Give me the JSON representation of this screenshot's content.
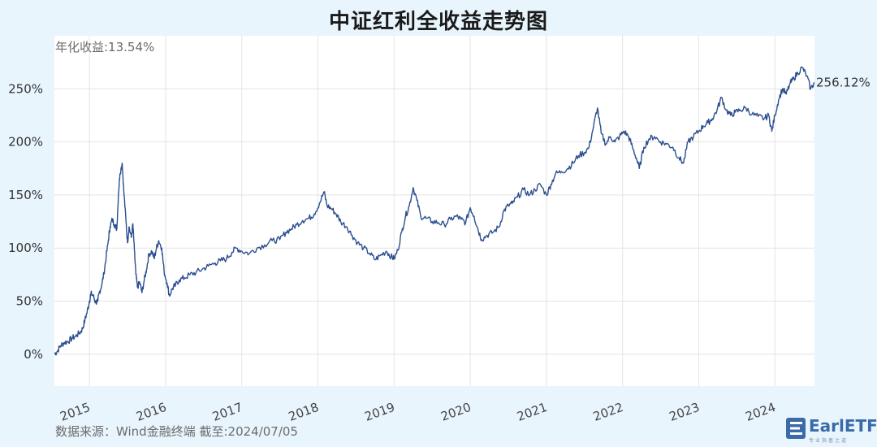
{
  "chart_data": {
    "type": "line",
    "title": "中证红利全收益走势图",
    "annualized_label": "年化收益:13.54%",
    "end_label": "256.12%",
    "source": "数据来源：Wind金融终端 截至:2024/07/05",
    "y_ticks": [
      "0%",
      "50%",
      "100%",
      "150%",
      "200%",
      "250%"
    ],
    "y_tick_values": [
      0,
      50,
      100,
      150,
      200,
      250
    ],
    "x_ticks": [
      "2015",
      "2016",
      "2017",
      "2018",
      "2019",
      "2020",
      "2021",
      "2022",
      "2023",
      "2024"
    ],
    "x_tick_values": [
      2015.0,
      2016.0,
      2017.0,
      2018.0,
      2019.0,
      2020.0,
      2021.0,
      2022.0,
      2023.0,
      2024.0
    ],
    "xlim": [
      2014.54,
      2024.52
    ],
    "ylim": [
      -30,
      300
    ],
    "grid": true,
    "line_color": "#2b4f8f",
    "series": [
      {
        "values": [
          [
            2014.54,
            0
          ],
          [
            2014.58,
            3
          ],
          [
            2014.62,
            8
          ],
          [
            2014.67,
            11
          ],
          [
            2014.72,
            12
          ],
          [
            2014.77,
            15
          ],
          [
            2014.82,
            17
          ],
          [
            2014.87,
            20
          ],
          [
            2014.91,
            24
          ],
          [
            2014.94,
            32
          ],
          [
            2014.97,
            40
          ],
          [
            2015.0,
            50
          ],
          [
            2015.02,
            57
          ],
          [
            2015.05,
            55
          ],
          [
            2015.08,
            49
          ],
          [
            2015.11,
            50
          ],
          [
            2015.13,
            58
          ],
          [
            2015.16,
            65
          ],
          [
            2015.19,
            76
          ],
          [
            2015.22,
            92
          ],
          [
            2015.25,
            108
          ],
          [
            2015.27,
            120
          ],
          [
            2015.3,
            127
          ],
          [
            2015.33,
            122
          ],
          [
            2015.36,
            118
          ],
          [
            2015.38,
            150
          ],
          [
            2015.4,
            170
          ],
          [
            2015.43,
            180
          ],
          [
            2015.45,
            155
          ],
          [
            2015.48,
            125
          ],
          [
            2015.5,
            105
          ],
          [
            2015.52,
            120
          ],
          [
            2015.55,
            110
          ],
          [
            2015.57,
            123
          ],
          [
            2015.59,
            98
          ],
          [
            2015.61,
            75
          ],
          [
            2015.63,
            63
          ],
          [
            2015.66,
            68
          ],
          [
            2015.69,
            58
          ],
          [
            2015.72,
            70
          ],
          [
            2015.75,
            80
          ],
          [
            2015.78,
            94
          ],
          [
            2015.82,
            97
          ],
          [
            2015.85,
            90
          ],
          [
            2015.88,
            100
          ],
          [
            2015.91,
            107
          ],
          [
            2015.95,
            100
          ],
          [
            2015.98,
            78
          ],
          [
            2016.02,
            67
          ],
          [
            2016.05,
            55
          ],
          [
            2016.09,
            62
          ],
          [
            2016.13,
            65
          ],
          [
            2016.18,
            70
          ],
          [
            2016.25,
            72
          ],
          [
            2016.32,
            75
          ],
          [
            2016.4,
            77
          ],
          [
            2016.48,
            80
          ],
          [
            2016.56,
            83
          ],
          [
            2016.65,
            86
          ],
          [
            2016.72,
            88
          ],
          [
            2016.8,
            90
          ],
          [
            2016.87,
            96
          ],
          [
            2016.93,
            100
          ],
          [
            2017.0,
            97
          ],
          [
            2017.1,
            95
          ],
          [
            2017.2,
            100
          ],
          [
            2017.3,
            103
          ],
          [
            2017.4,
            107
          ],
          [
            2017.5,
            108
          ],
          [
            2017.58,
            115
          ],
          [
            2017.65,
            118
          ],
          [
            2017.72,
            122
          ],
          [
            2017.8,
            126
          ],
          [
            2017.88,
            128
          ],
          [
            2017.95,
            132
          ],
          [
            2018.02,
            142
          ],
          [
            2018.08,
            153
          ],
          [
            2018.12,
            140
          ],
          [
            2018.18,
            137
          ],
          [
            2018.24,
            132
          ],
          [
            2018.3,
            125
          ],
          [
            2018.38,
            120
          ],
          [
            2018.45,
            112
          ],
          [
            2018.52,
            105
          ],
          [
            2018.6,
            100
          ],
          [
            2018.68,
            95
          ],
          [
            2018.75,
            89
          ],
          [
            2018.82,
            93
          ],
          [
            2018.9,
            97
          ],
          [
            2018.96,
            92
          ],
          [
            2019.0,
            90
          ],
          [
            2019.05,
            98
          ],
          [
            2019.1,
            115
          ],
          [
            2019.15,
            130
          ],
          [
            2019.2,
            140
          ],
          [
            2019.25,
            157
          ],
          [
            2019.3,
            145
          ],
          [
            2019.35,
            130
          ],
          [
            2019.42,
            128
          ],
          [
            2019.5,
            125
          ],
          [
            2019.58,
            124
          ],
          [
            2019.66,
            122
          ],
          [
            2019.74,
            127
          ],
          [
            2019.82,
            130
          ],
          [
            2019.88,
            127
          ],
          [
            2019.94,
            124
          ],
          [
            2020.0,
            138
          ],
          [
            2020.05,
            130
          ],
          [
            2020.1,
            118
          ],
          [
            2020.15,
            108
          ],
          [
            2020.22,
            112
          ],
          [
            2020.3,
            115
          ],
          [
            2020.38,
            120
          ],
          [
            2020.44,
            135
          ],
          [
            2020.5,
            140
          ],
          [
            2020.55,
            142
          ],
          [
            2020.62,
            148
          ],
          [
            2020.7,
            155
          ],
          [
            2020.78,
            150
          ],
          [
            2020.85,
            155
          ],
          [
            2020.92,
            160
          ],
          [
            2021.0,
            150
          ],
          [
            2021.06,
            160
          ],
          [
            2021.12,
            170
          ],
          [
            2021.2,
            172
          ],
          [
            2021.28,
            175
          ],
          [
            2021.35,
            180
          ],
          [
            2021.42,
            187
          ],
          [
            2021.5,
            190
          ],
          [
            2021.56,
            195
          ],
          [
            2021.62,
            215
          ],
          [
            2021.67,
            232
          ],
          [
            2021.72,
            208
          ],
          [
            2021.78,
            198
          ],
          [
            2021.84,
            205
          ],
          [
            2021.9,
            200
          ],
          [
            2021.96,
            205
          ],
          [
            2022.02,
            210
          ],
          [
            2022.08,
            205
          ],
          [
            2022.13,
            195
          ],
          [
            2022.18,
            185
          ],
          [
            2022.22,
            175
          ],
          [
            2022.28,
            195
          ],
          [
            2022.35,
            203
          ],
          [
            2022.42,
            205
          ],
          [
            2022.5,
            200
          ],
          [
            2022.58,
            198
          ],
          [
            2022.66,
            195
          ],
          [
            2022.74,
            185
          ],
          [
            2022.8,
            180
          ],
          [
            2022.86,
            200
          ],
          [
            2022.93,
            205
          ],
          [
            2023.0,
            210
          ],
          [
            2023.06,
            215
          ],
          [
            2023.12,
            218
          ],
          [
            2023.18,
            222
          ],
          [
            2023.24,
            230
          ],
          [
            2023.3,
            242
          ],
          [
            2023.36,
            230
          ],
          [
            2023.42,
            225
          ],
          [
            2023.48,
            228
          ],
          [
            2023.55,
            230
          ],
          [
            2023.62,
            232
          ],
          [
            2023.7,
            226
          ],
          [
            2023.78,
            224
          ],
          [
            2023.86,
            222
          ],
          [
            2023.92,
            225
          ],
          [
            2023.96,
            210
          ],
          [
            2024.0,
            225
          ],
          [
            2024.05,
            240
          ],
          [
            2024.1,
            250
          ],
          [
            2024.15,
            245
          ],
          [
            2024.2,
            255
          ],
          [
            2024.25,
            260
          ],
          [
            2024.3,
            265
          ],
          [
            2024.36,
            270
          ],
          [
            2024.42,
            262
          ],
          [
            2024.47,
            250
          ],
          [
            2024.52,
            256
          ]
        ]
      }
    ]
  },
  "logo": {
    "text": "EarlETF",
    "sub": "专业指基之道"
  }
}
